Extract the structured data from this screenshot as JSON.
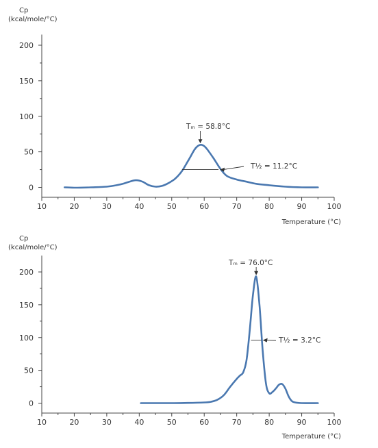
{
  "chart_data": [
    {
      "type": "line",
      "ylabel_line1": "Cp",
      "ylabel_line2": "(kcal/mole/°C)",
      "xlabel": "Temperature (°C)",
      "xlim": [
        10,
        100
      ],
      "ylim": [
        -10,
        215
      ],
      "x_ticks": [
        10,
        20,
        30,
        40,
        50,
        60,
        70,
        80,
        90,
        100
      ],
      "y_ticks": [
        0,
        50,
        100,
        150,
        200
      ],
      "grid": false,
      "series": [
        {
          "x": [
            17,
            20,
            25,
            30,
            33,
            35,
            37,
            39,
            41,
            43,
            45,
            47,
            49,
            51,
            53,
            55,
            57,
            58,
            59,
            60,
            61,
            63,
            65,
            67,
            70,
            73,
            76,
            80,
            85,
            90,
            95
          ],
          "values": [
            0,
            -0.5,
            0,
            1,
            3,
            5,
            8,
            10,
            8,
            3,
            1,
            2,
            6,
            12,
            22,
            37,
            53,
            58,
            60,
            58,
            53,
            40,
            26,
            16,
            11,
            8,
            5,
            3,
            1,
            0,
            0
          ]
        }
      ],
      "annotations": [
        {
          "label": "Tₘ = 58.8°C",
          "x": 58.8,
          "y": 60
        },
        {
          "label": "T½ = 11.2°C",
          "x_from": 53.2,
          "x_to": 64.4,
          "y": 25
        }
      ]
    },
    {
      "type": "line",
      "ylabel_line1": "Cp",
      "ylabel_line2": "(kcal/mole/°C)",
      "xlabel": "Temperature (°C)",
      "xlim": [
        10,
        100
      ],
      "ylim": [
        -10,
        225
      ],
      "x_ticks": [
        10,
        20,
        30,
        40,
        50,
        60,
        70,
        80,
        90,
        100
      ],
      "y_ticks": [
        0,
        50,
        100,
        150,
        200
      ],
      "grid": false,
      "series": [
        {
          "x": [
            40.5,
            45,
            50,
            55,
            60,
            62,
            64,
            66,
            68,
            70,
            71,
            72,
            73,
            74,
            75,
            76,
            77,
            78,
            79,
            80,
            81,
            82,
            83,
            84,
            85,
            86,
            87,
            88,
            90,
            95
          ],
          "values": [
            0,
            0,
            0,
            0.3,
            1,
            2,
            5,
            12,
            25,
            37,
            42,
            47,
            65,
            110,
            165,
            193,
            150,
            80,
            30,
            15,
            17,
            22,
            28,
            29,
            22,
            10,
            3,
            1,
            0,
            0
          ]
        }
      ],
      "annotations": [
        {
          "label": "Tₘ = 76.0°C",
          "x": 76.0,
          "y": 193
        },
        {
          "label": "T½ = 3.2°C",
          "x_from": 74.4,
          "x_to": 77.6,
          "y": 96
        }
      ]
    }
  ]
}
